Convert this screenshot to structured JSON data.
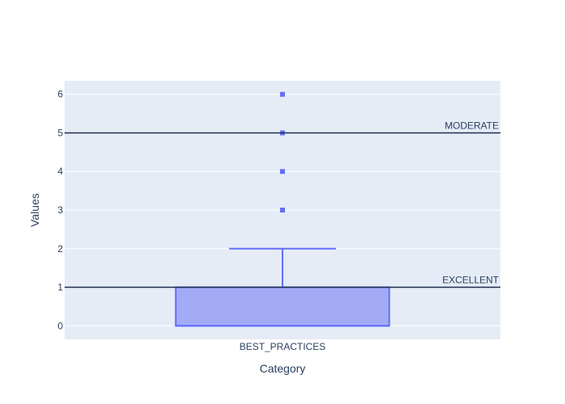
{
  "chart_data": {
    "type": "box",
    "xlabel": "Category",
    "ylabel": "Values",
    "ylim": [
      -0.35,
      6.35
    ],
    "yticks": [
      0,
      1,
      2,
      3,
      4,
      5,
      6
    ],
    "grid": true,
    "categories": [
      "BEST_PRACTICES"
    ],
    "box": {
      "category": "BEST_PRACTICES",
      "lowerfence": 0,
      "q1": 0,
      "median": 0,
      "q3": 1,
      "upperfence": 2,
      "outliers": [
        3,
        4,
        5,
        6
      ]
    },
    "reference_lines": [
      {
        "label": "MODERATE",
        "value": 5
      },
      {
        "label": "EXCELLENT",
        "value": 1
      }
    ]
  },
  "colors": {
    "plot_bg": "#e5ecf6",
    "grid": "#ffffff",
    "box_fill": "#a3abf5",
    "box_line": "#636efa",
    "ref_line": "#1f2d4f",
    "text": "#2a3f5f"
  }
}
